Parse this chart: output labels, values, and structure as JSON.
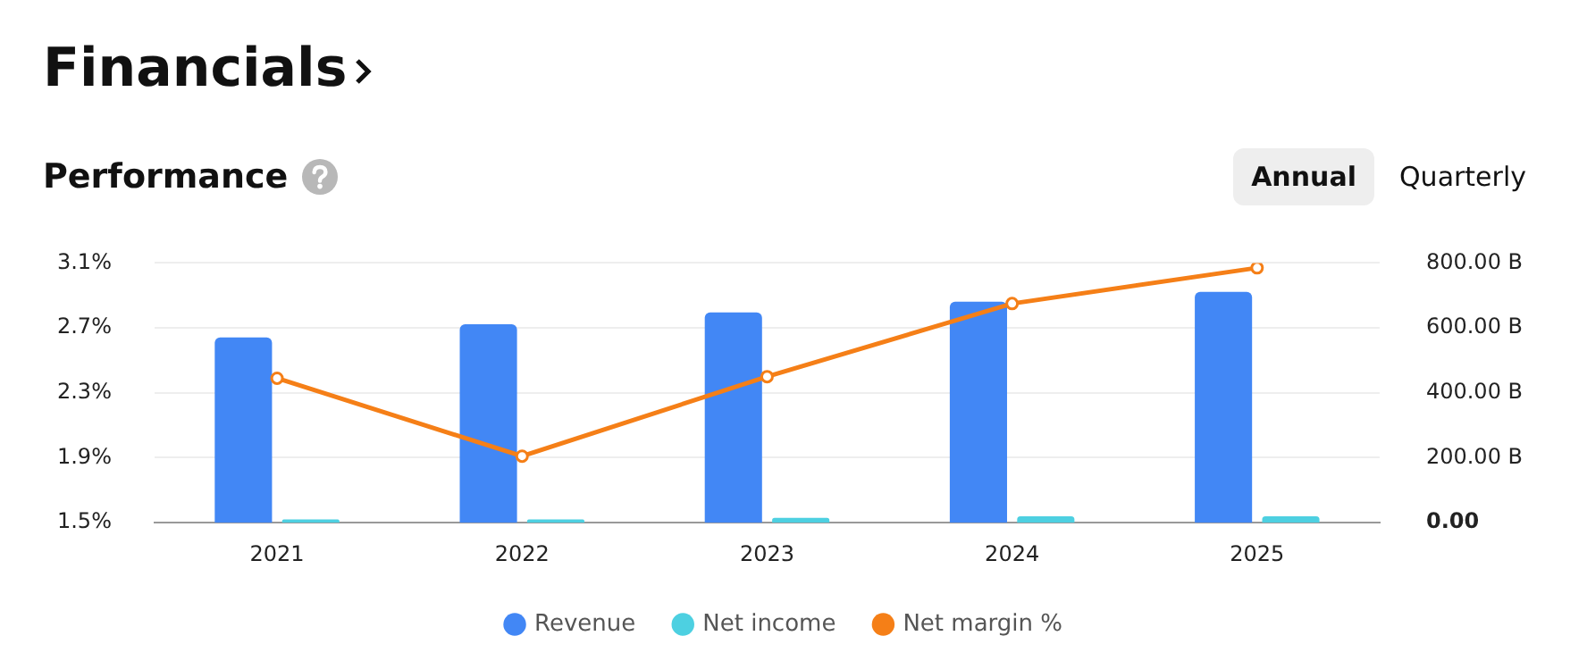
{
  "chart_data": {
    "type": "bar",
    "title": "Financials",
    "subtitle": "Performance",
    "annotations": [
      "Annual",
      "Quarterly"
    ],
    "categories": [
      "2021",
      "2022",
      "2023",
      "2024",
      "2025"
    ],
    "series": [
      {
        "name": "Revenue",
        "color": "#4287f5",
        "axis": "y2",
        "values": [
          571,
          611,
          648,
          681,
          711
        ]
      },
      {
        "name": "Net income",
        "color": "#4dd0e1",
        "axis": "y2",
        "values": [
          10,
          10,
          15,
          20,
          20
        ]
      },
      {
        "name": "Net margin %",
        "color": "#f57f17",
        "type": "line",
        "marker": "circle",
        "values": [
          2.39,
          1.91,
          2.4,
          2.85,
          3.07
        ]
      }
    ],
    "ylim": [
      1.5,
      3.1
    ],
    "yticks": [
      {
        "value": 1.5,
        "label": "1.5%"
      },
      {
        "value": 1.9,
        "label": "1.9%"
      },
      {
        "value": 2.3,
        "label": "2.3%"
      },
      {
        "value": 2.7,
        "label": "2.7%"
      },
      {
        "value": 3.1,
        "label": "3.1%"
      }
    ],
    "y2lim": [
      0,
      800
    ],
    "y2ticks": [
      {
        "value": 0,
        "label": "0.00"
      },
      {
        "value": 200,
        "label": "200.00 B"
      },
      {
        "value": 400,
        "label": "400.00 B"
      },
      {
        "value": 600,
        "label": "600.00 B"
      },
      {
        "value": 800,
        "label": "800.00 B"
      }
    ],
    "grid": "y",
    "legend": "bottom"
  }
}
